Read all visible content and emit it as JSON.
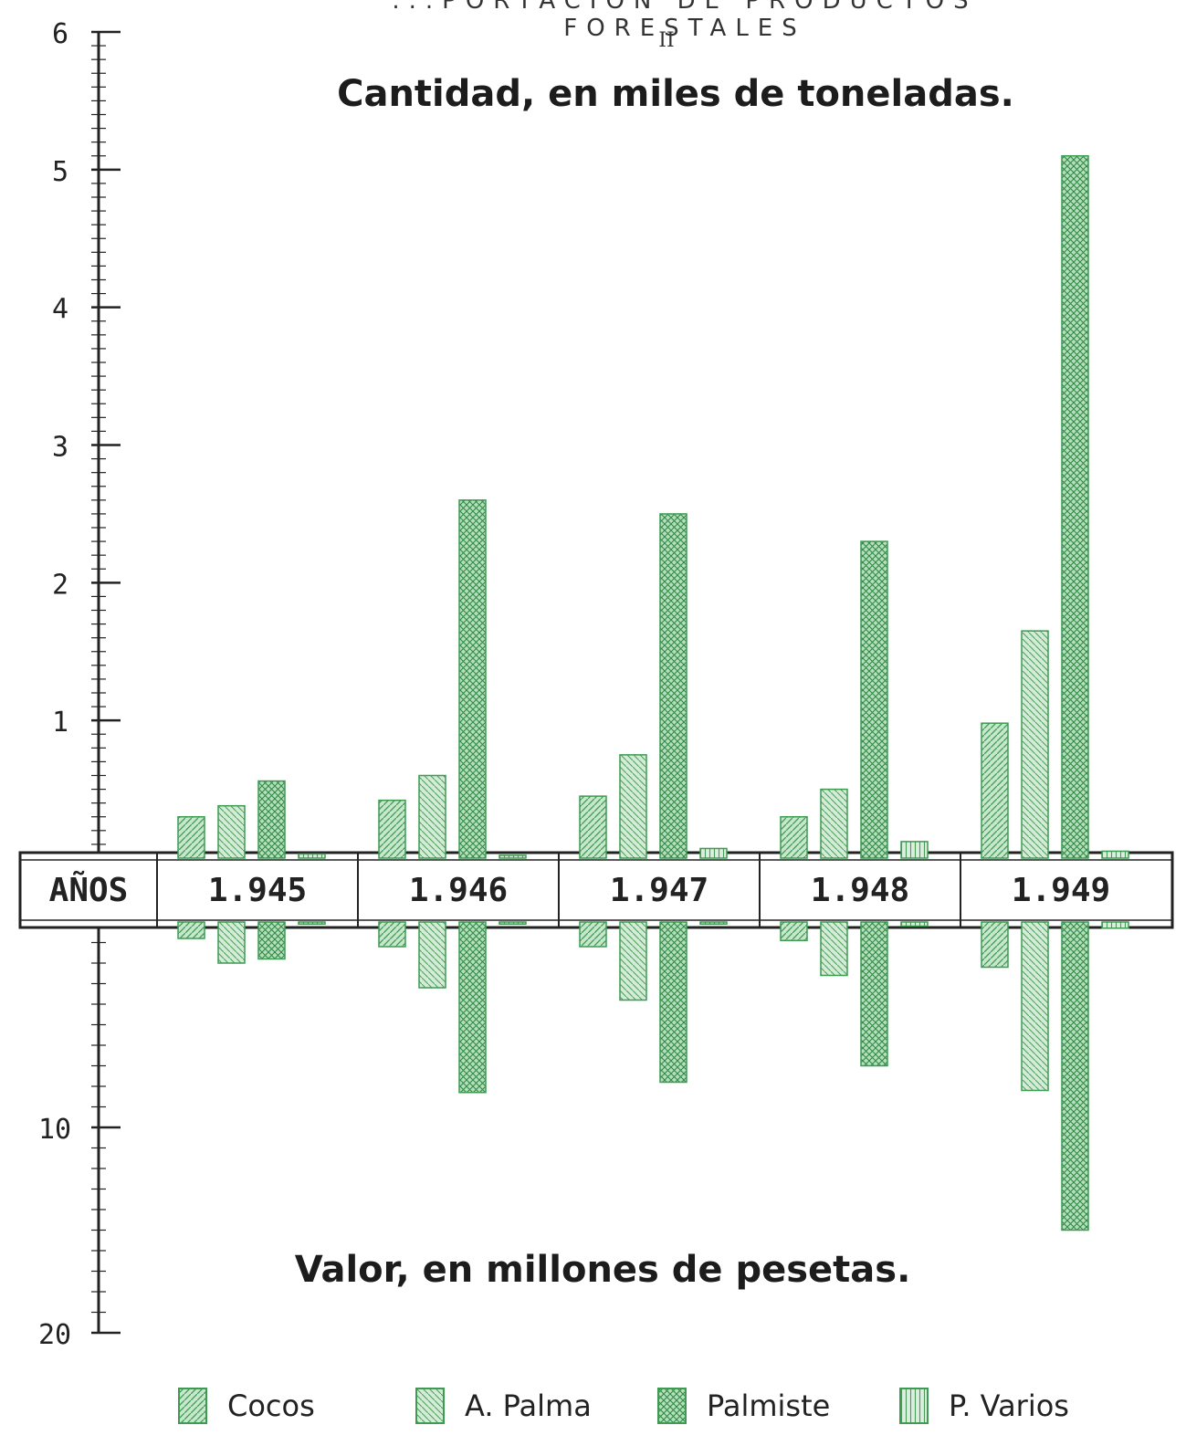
{
  "titles": {
    "top": "...PORTACION DE PRODUCTOS FORESTALES",
    "roman": "II",
    "quantity": "Cantidad, en miles de toneladas.",
    "value": "Valor, en millones de pesetas."
  },
  "years_header": "AÑOS",
  "colors": {
    "bar_fill": "#bfe3c4",
    "bar_stroke": "#3f9a52",
    "axis": "#222222"
  },
  "chart_data": [
    {
      "type": "bar",
      "title": "Cantidad, en miles de toneladas.",
      "categories": [
        "1.945",
        "1.946",
        "1.947",
        "1.948",
        "1.949"
      ],
      "series": [
        {
          "name": "Cocos",
          "values": [
            0.3,
            0.42,
            0.45,
            0.3,
            0.98
          ]
        },
        {
          "name": "A. Palma",
          "values": [
            0.38,
            0.6,
            0.75,
            0.5,
            1.65
          ]
        },
        {
          "name": "Palmiste",
          "values": [
            0.56,
            2.6,
            2.5,
            2.3,
            5.1
          ]
        },
        {
          "name": "P. Varios",
          "values": [
            0.03,
            0.02,
            0.07,
            0.12,
            0.05
          ]
        }
      ],
      "yticks": [
        "1",
        "2",
        "3",
        "4",
        "5",
        "6"
      ],
      "ylim": [
        0,
        6
      ]
    },
    {
      "type": "bar",
      "title": "Valor, en millones de pesetas.",
      "categories": [
        "1.945",
        "1.946",
        "1.947",
        "1.948",
        "1.949"
      ],
      "series": [
        {
          "name": "Cocos",
          "values": [
            0.8,
            1.2,
            1.2,
            0.9,
            2.2
          ]
        },
        {
          "name": "A. Palma",
          "values": [
            2.0,
            3.2,
            3.8,
            2.6,
            8.2
          ]
        },
        {
          "name": "Palmiste",
          "values": [
            1.8,
            8.3,
            7.8,
            7.0,
            15.0
          ]
        },
        {
          "name": "P. Varios",
          "values": [
            0.1,
            0.1,
            0.1,
            0.2,
            0.3
          ]
        }
      ],
      "yticks": [
        "10",
        "20"
      ],
      "ylim": [
        0,
        20
      ]
    }
  ],
  "legend": [
    {
      "label": "Cocos",
      "pattern": "diag-right"
    },
    {
      "label": "A. Palma",
      "pattern": "diag-left"
    },
    {
      "label": "Palmiste",
      "pattern": "cross"
    },
    {
      "label": "P. Varios",
      "pattern": "vertical"
    }
  ]
}
